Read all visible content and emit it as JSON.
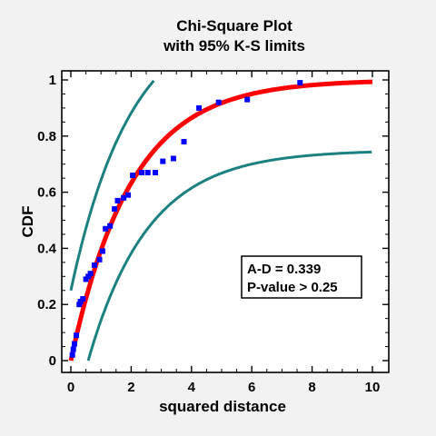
{
  "chart_data": {
    "type": "scatter",
    "title": "Chi-Square Plot",
    "subtitle": "with 95% K-S limits",
    "xlabel": "squared distance",
    "ylabel": "CDF",
    "xlim": [
      0,
      10
    ],
    "ylim": [
      0,
      1
    ],
    "x_ticks": [
      "0",
      "2",
      "4",
      "6",
      "8",
      "10"
    ],
    "y_ticks": [
      "0",
      "0.2",
      "0.4",
      "0.6",
      "0.8",
      "1"
    ],
    "grid": false,
    "colors": {
      "points": "#0000ff",
      "fitted_curve": "#ff0000",
      "limit_curves": "#1a8080",
      "plot_background": "#ffffff",
      "page_background": "#f2f2f2"
    },
    "points": [
      {
        "x": 0.05,
        "y": 0.02
      },
      {
        "x": 0.08,
        "y": 0.04
      },
      {
        "x": 0.12,
        "y": 0.06
      },
      {
        "x": 0.18,
        "y": 0.09
      },
      {
        "x": 0.28,
        "y": 0.2
      },
      {
        "x": 0.32,
        "y": 0.21
      },
      {
        "x": 0.4,
        "y": 0.22
      },
      {
        "x": 0.5,
        "y": 0.29
      },
      {
        "x": 0.58,
        "y": 0.3
      },
      {
        "x": 0.65,
        "y": 0.31
      },
      {
        "x": 0.78,
        "y": 0.34
      },
      {
        "x": 0.95,
        "y": 0.36
      },
      {
        "x": 1.05,
        "y": 0.39
      },
      {
        "x": 1.15,
        "y": 0.47
      },
      {
        "x": 1.3,
        "y": 0.48
      },
      {
        "x": 1.45,
        "y": 0.54
      },
      {
        "x": 1.55,
        "y": 0.57
      },
      {
        "x": 1.75,
        "y": 0.58
      },
      {
        "x": 1.9,
        "y": 0.59
      },
      {
        "x": 2.05,
        "y": 0.66
      },
      {
        "x": 2.35,
        "y": 0.67
      },
      {
        "x": 2.55,
        "y": 0.67
      },
      {
        "x": 2.8,
        "y": 0.67
      },
      {
        "x": 3.05,
        "y": 0.71
      },
      {
        "x": 3.4,
        "y": 0.72
      },
      {
        "x": 3.75,
        "y": 0.78
      },
      {
        "x": 4.25,
        "y": 0.9
      },
      {
        "x": 4.9,
        "y": 0.92
      },
      {
        "x": 5.85,
        "y": 0.93
      },
      {
        "x": 7.6,
        "y": 0.99
      }
    ],
    "fitted_curve": {
      "type": "chi-square-cdf",
      "df": 2,
      "color": "#ff0000"
    },
    "limit_band": {
      "type": "K-S",
      "confidence": 0.95,
      "half_width": 0.25,
      "color": "#1a8080"
    },
    "stats_box": {
      "line1": "A-D = 0.339",
      "line2": "P-value > 0.25",
      "placement": "lower-right"
    }
  }
}
